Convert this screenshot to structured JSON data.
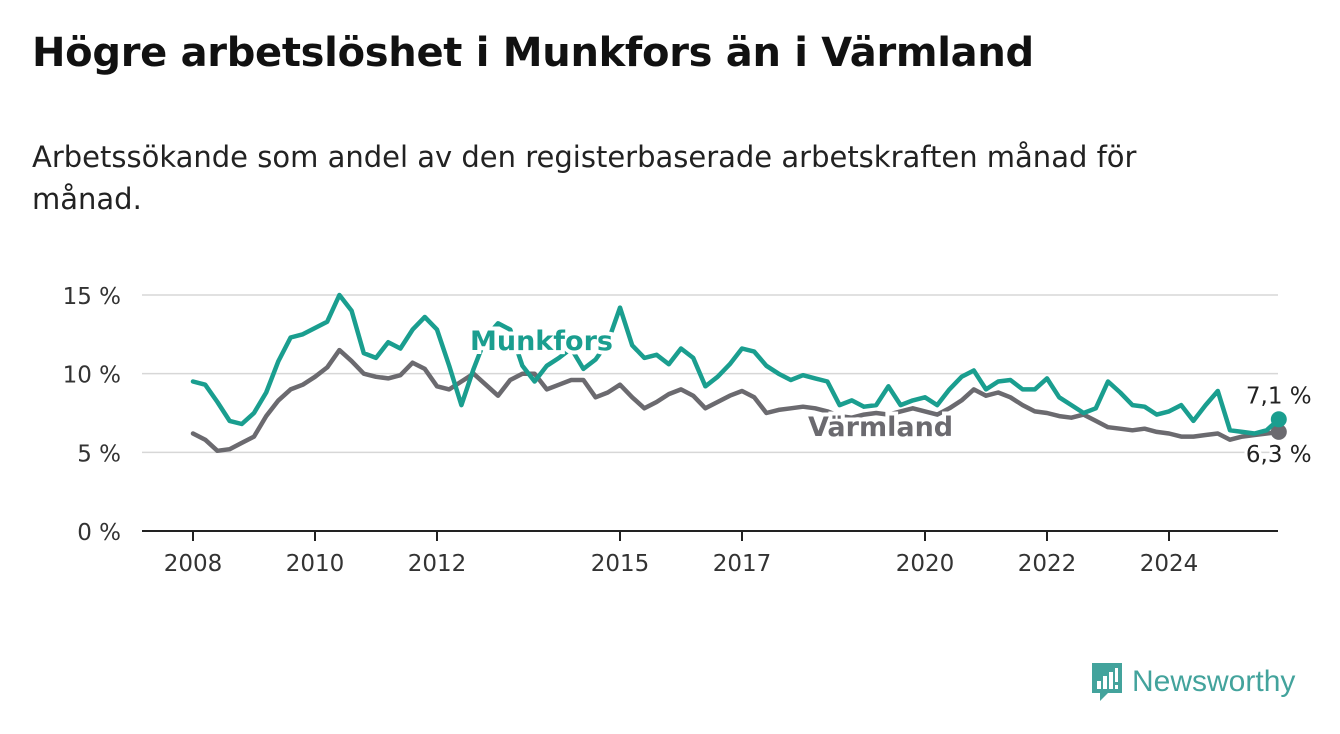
{
  "header": {
    "title": "Högre arbetslöshet i Munkfors än i Värmland",
    "subtitle": "Arbetssökande som andel av den registerbaserade arbetskraften månad för månad."
  },
  "brand": {
    "name": "Newsworthy",
    "icon": "bar-chart-flag-icon",
    "color": "#43a39c"
  },
  "chart_data": {
    "type": "line",
    "x_ticks": [
      2008,
      2010,
      2012,
      2015,
      2017,
      2020,
      2022,
      2024
    ],
    "y_ticks": [
      0,
      5,
      10,
      15
    ],
    "y_tick_labels": [
      "0 %",
      "5 %",
      "10 %",
      "15 %"
    ],
    "ylim": [
      0,
      15
    ],
    "xlim": [
      2008,
      2025
    ],
    "grid": true,
    "series": [
      {
        "name": "Munkfors",
        "color": "#1a9e8f",
        "end_label": "7,1 %",
        "points": [
          [
            2008.0,
            9.5
          ],
          [
            2008.2,
            9.3
          ],
          [
            2008.4,
            8.2
          ],
          [
            2008.6,
            7.0
          ],
          [
            2008.8,
            6.8
          ],
          [
            2009.0,
            7.5
          ],
          [
            2009.2,
            8.8
          ],
          [
            2009.4,
            10.8
          ],
          [
            2009.6,
            12.3
          ],
          [
            2009.8,
            12.5
          ],
          [
            2010.0,
            12.9
          ],
          [
            2010.2,
            13.3
          ],
          [
            2010.4,
            15.0
          ],
          [
            2010.6,
            14.0
          ],
          [
            2010.8,
            11.3
          ],
          [
            2011.0,
            11.0
          ],
          [
            2011.2,
            12.0
          ],
          [
            2011.4,
            11.6
          ],
          [
            2011.6,
            12.8
          ],
          [
            2011.8,
            13.6
          ],
          [
            2012.0,
            12.8
          ],
          [
            2012.2,
            10.5
          ],
          [
            2012.4,
            8.0
          ],
          [
            2012.6,
            10.3
          ],
          [
            2012.8,
            12.3
          ],
          [
            2013.0,
            13.2
          ],
          [
            2013.2,
            12.8
          ],
          [
            2013.4,
            10.5
          ],
          [
            2013.6,
            9.5
          ],
          [
            2013.8,
            10.5
          ],
          [
            2014.0,
            11.0
          ],
          [
            2014.2,
            11.6
          ],
          [
            2014.4,
            10.3
          ],
          [
            2014.6,
            10.9
          ],
          [
            2014.8,
            12.0
          ],
          [
            2015.0,
            14.2
          ],
          [
            2015.2,
            11.8
          ],
          [
            2015.4,
            11.0
          ],
          [
            2015.6,
            11.2
          ],
          [
            2015.8,
            10.6
          ],
          [
            2016.0,
            11.6
          ],
          [
            2016.2,
            11.0
          ],
          [
            2016.4,
            9.2
          ],
          [
            2016.6,
            9.8
          ],
          [
            2016.8,
            10.6
          ],
          [
            2017.0,
            11.6
          ],
          [
            2017.2,
            11.4
          ],
          [
            2017.4,
            10.5
          ],
          [
            2017.6,
            10.0
          ],
          [
            2017.8,
            9.6
          ],
          [
            2018.0,
            9.9
          ],
          [
            2018.2,
            9.7
          ],
          [
            2018.4,
            9.5
          ],
          [
            2018.6,
            8.0
          ],
          [
            2018.8,
            8.3
          ],
          [
            2019.0,
            7.9
          ],
          [
            2019.2,
            8.0
          ],
          [
            2019.4,
            9.2
          ],
          [
            2019.6,
            8.0
          ],
          [
            2019.8,
            8.3
          ],
          [
            2020.0,
            8.5
          ],
          [
            2020.2,
            8.0
          ],
          [
            2020.4,
            9.0
          ],
          [
            2020.6,
            9.8
          ],
          [
            2020.8,
            10.2
          ],
          [
            2021.0,
            9.0
          ],
          [
            2021.2,
            9.5
          ],
          [
            2021.4,
            9.6
          ],
          [
            2021.6,
            9.0
          ],
          [
            2021.8,
            9.0
          ],
          [
            2022.0,
            9.7
          ],
          [
            2022.2,
            8.5
          ],
          [
            2022.4,
            8.0
          ],
          [
            2022.6,
            7.5
          ],
          [
            2022.8,
            7.8
          ],
          [
            2023.0,
            9.5
          ],
          [
            2023.2,
            8.8
          ],
          [
            2023.4,
            8.0
          ],
          [
            2023.6,
            7.9
          ],
          [
            2023.8,
            7.4
          ],
          [
            2024.0,
            7.6
          ],
          [
            2024.2,
            8.0
          ],
          [
            2024.4,
            7.0
          ],
          [
            2024.6,
            8.0
          ],
          [
            2024.8,
            8.9
          ],
          [
            2025.0,
            6.4
          ],
          [
            2025.2,
            6.3
          ],
          [
            2025.4,
            6.2
          ],
          [
            2025.6,
            6.4
          ],
          [
            2025.8,
            7.1
          ]
        ]
      },
      {
        "name": "Värmland",
        "color": "#6b6a6f",
        "end_label": "6,3 %",
        "points": [
          [
            2008.0,
            6.2
          ],
          [
            2008.2,
            5.8
          ],
          [
            2008.4,
            5.1
          ],
          [
            2008.6,
            5.2
          ],
          [
            2008.8,
            5.6
          ],
          [
            2009.0,
            6.0
          ],
          [
            2009.2,
            7.3
          ],
          [
            2009.4,
            8.3
          ],
          [
            2009.6,
            9.0
          ],
          [
            2009.8,
            9.3
          ],
          [
            2010.0,
            9.8
          ],
          [
            2010.2,
            10.4
          ],
          [
            2010.4,
            11.5
          ],
          [
            2010.6,
            10.8
          ],
          [
            2010.8,
            10.0
          ],
          [
            2011.0,
            9.8
          ],
          [
            2011.2,
            9.7
          ],
          [
            2011.4,
            9.9
          ],
          [
            2011.6,
            10.7
          ],
          [
            2011.8,
            10.3
          ],
          [
            2012.0,
            9.2
          ],
          [
            2012.2,
            9.0
          ],
          [
            2012.4,
            9.5
          ],
          [
            2012.6,
            10.0
          ],
          [
            2012.8,
            9.3
          ],
          [
            2013.0,
            8.6
          ],
          [
            2013.2,
            9.6
          ],
          [
            2013.4,
            10.0
          ],
          [
            2013.6,
            10.0
          ],
          [
            2013.8,
            9.0
          ],
          [
            2014.0,
            9.3
          ],
          [
            2014.2,
            9.6
          ],
          [
            2014.4,
            9.6
          ],
          [
            2014.6,
            8.5
          ],
          [
            2014.8,
            8.8
          ],
          [
            2015.0,
            9.3
          ],
          [
            2015.2,
            8.5
          ],
          [
            2015.4,
            7.8
          ],
          [
            2015.6,
            8.2
          ],
          [
            2015.8,
            8.7
          ],
          [
            2016.0,
            9.0
          ],
          [
            2016.2,
            8.6
          ],
          [
            2016.4,
            7.8
          ],
          [
            2016.6,
            8.2
          ],
          [
            2016.8,
            8.6
          ],
          [
            2017.0,
            8.9
          ],
          [
            2017.2,
            8.5
          ],
          [
            2017.4,
            7.5
          ],
          [
            2017.6,
            7.7
          ],
          [
            2017.8,
            7.8
          ],
          [
            2018.0,
            7.9
          ],
          [
            2018.2,
            7.8
          ],
          [
            2018.4,
            7.6
          ],
          [
            2018.6,
            7.3
          ],
          [
            2018.8,
            7.2
          ],
          [
            2019.0,
            7.4
          ],
          [
            2019.2,
            7.5
          ],
          [
            2019.4,
            7.4
          ],
          [
            2019.6,
            7.6
          ],
          [
            2019.8,
            7.8
          ],
          [
            2020.0,
            7.6
          ],
          [
            2020.2,
            7.4
          ],
          [
            2020.4,
            7.8
          ],
          [
            2020.6,
            8.3
          ],
          [
            2020.8,
            9.0
          ],
          [
            2021.0,
            8.6
          ],
          [
            2021.2,
            8.8
          ],
          [
            2021.4,
            8.5
          ],
          [
            2021.6,
            8.0
          ],
          [
            2021.8,
            7.6
          ],
          [
            2022.0,
            7.5
          ],
          [
            2022.2,
            7.3
          ],
          [
            2022.4,
            7.2
          ],
          [
            2022.6,
            7.4
          ],
          [
            2022.8,
            7.0
          ],
          [
            2023.0,
            6.6
          ],
          [
            2023.2,
            6.5
          ],
          [
            2023.4,
            6.4
          ],
          [
            2023.6,
            6.5
          ],
          [
            2023.8,
            6.3
          ],
          [
            2024.0,
            6.2
          ],
          [
            2024.2,
            6.0
          ],
          [
            2024.4,
            6.0
          ],
          [
            2024.6,
            6.1
          ],
          [
            2024.8,
            6.2
          ],
          [
            2025.0,
            5.8
          ],
          [
            2025.2,
            6.0
          ],
          [
            2025.4,
            6.1
          ],
          [
            2025.6,
            6.2
          ],
          [
            2025.8,
            6.3
          ]
        ]
      }
    ]
  }
}
